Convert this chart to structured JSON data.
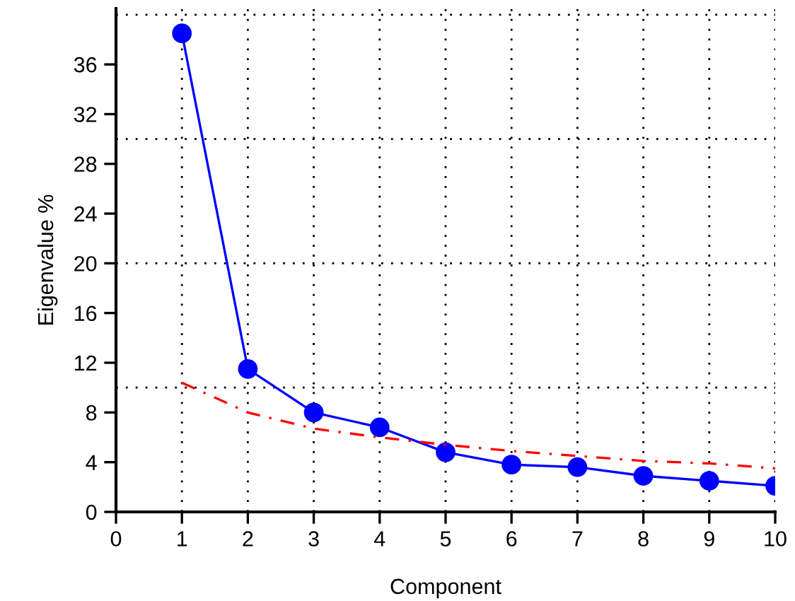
{
  "chart_data": {
    "type": "line",
    "xlabel": "Component",
    "ylabel": "Eigenvalue %",
    "x": [
      1,
      2,
      3,
      4,
      5,
      6,
      7,
      8,
      9,
      10
    ],
    "series": [
      {
        "color": "#0000ff",
        "marker": "circle",
        "line_style": "solid",
        "values": [
          38.5,
          11.5,
          8.0,
          6.8,
          4.8,
          3.8,
          3.6,
          2.9,
          2.5,
          2.1
        ]
      },
      {
        "color": "#ff0000",
        "marker": "none",
        "line_style": "dashed",
        "values": [
          10.4,
          8.0,
          6.7,
          6.0,
          5.4,
          4.9,
          4.5,
          4.1,
          3.9,
          3.5
        ]
      }
    ],
    "xlim": [
      0,
      10
    ],
    "xticks": [
      0,
      1,
      2,
      3,
      4,
      5,
      6,
      7,
      8,
      9,
      10
    ],
    "ylim": [
      0,
      40.5
    ],
    "yticks": [
      0,
      4,
      8,
      12,
      16,
      20,
      24,
      28,
      32,
      36
    ],
    "grid": "x",
    "ref_lines": [
      {
        "axis": "y",
        "value": 10,
        "color": "#000000",
        "line_style": "dotted"
      },
      {
        "axis": "y",
        "value": 20,
        "color": "#000000",
        "line_style": "dotted"
      },
      {
        "axis": "y",
        "value": 30,
        "color": "#000000",
        "line_style": "dotted"
      },
      {
        "axis": "y",
        "value": 40,
        "color": "#000000",
        "line_style": "dotted"
      }
    ],
    "legend": false
  }
}
